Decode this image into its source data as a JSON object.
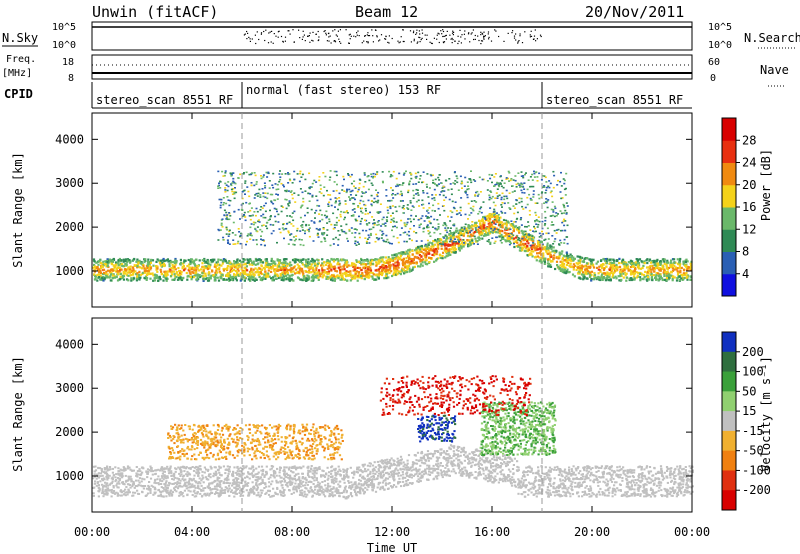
{
  "header": {
    "station": "Unwin (fitACF)",
    "beam": "Beam 12",
    "date": "20/Nov/2011"
  },
  "status_panels": {
    "nsky_label": "N.Sky",
    "nsky_ticks": [
      "10^5",
      "10^0"
    ],
    "nsearch_label": "N.Search",
    "nsearch_ticks": [
      "10^5",
      "10^0"
    ],
    "freq_label": "Freq.",
    "freq_unit": "[MHz]",
    "freq_ticks": [
      "18",
      "8"
    ],
    "nave_label": "Nave",
    "nave_ticks": [
      "60",
      "0"
    ],
    "cpid_label": "CPID",
    "cpid_segments": [
      {
        "start_ut": 0,
        "end_ut": 6,
        "label": "stereo_scan 8551 RF"
      },
      {
        "start_ut": 6,
        "end_ut": 18,
        "label": "normal (fast stereo) 153 RF"
      },
      {
        "start_ut": 18,
        "end_ut": 24,
        "label": "stereo_scan 8551 RF"
      }
    ]
  },
  "chart_data": [
    {
      "type": "heatmap",
      "name": "power",
      "ylabel": "Slant Range [km]",
      "xlabel": "Time UT",
      "x_ticks": [
        "00:00",
        "04:00",
        "08:00",
        "12:00",
        "16:00",
        "20:00",
        "00:00"
      ],
      "xlim_hours": [
        0,
        24
      ],
      "ylim_km": [
        180,
        4600
      ],
      "y_ticks": [
        1000,
        2000,
        3000,
        4000
      ],
      "colorbar": {
        "label": "Power [dB]",
        "ticks": [
          4,
          8,
          12,
          16,
          20,
          24,
          28
        ],
        "colors": [
          "#1010e0",
          "#2a5fb4",
          "#2f8a55",
          "#6ab86a",
          "#f4d21a",
          "#f08a10",
          "#e83010",
          "#d80000"
        ]
      },
      "features": [
        {
          "description_id": "main_band",
          "start_ut": 0,
          "end_ut": 24,
          "range_km_start": 1000,
          "range_km_peak": 2250,
          "peak_ut": 16,
          "power_db": [
            8,
            26
          ]
        },
        {
          "description_id": "upper_scatter",
          "start_ut": 6,
          "end_ut": 18,
          "range_km": [
            1600,
            3300
          ],
          "power_db": [
            4,
            20
          ]
        }
      ]
    },
    {
      "type": "heatmap",
      "name": "velocity",
      "ylabel": "Slant Range [km]",
      "xlabel": "Time UT",
      "x_ticks": [
        "00:00",
        "04:00",
        "08:00",
        "12:00",
        "16:00",
        "20:00",
        "00:00"
      ],
      "xlim_hours": [
        0,
        24
      ],
      "ylim_km": [
        180,
        4600
      ],
      "y_ticks": [
        1000,
        2000,
        3000,
        4000
      ],
      "colorbar": {
        "label": "Velocity [m s⁻¹]",
        "ticks": [
          200,
          100,
          50,
          15,
          -15,
          -50,
          -100,
          -200
        ],
        "colors": [
          "#1030c0",
          "#2f6f3f",
          "#3aa03a",
          "#90d070",
          "#c0c0c0",
          "#f0b030",
          "#f08010",
          "#e03010",
          "#d80000"
        ]
      },
      "features": [
        {
          "description_id": "ground_scatter",
          "start_ut": 0,
          "end_ut": 24,
          "range_km": [
            500,
            1300
          ],
          "velocity": [
            -15,
            15
          ]
        },
        {
          "description_id": "evening_positive",
          "start_ut": 15.5,
          "end_ut": 18.5,
          "range_km": [
            1500,
            2700
          ],
          "velocity": [
            15,
            100
          ]
        },
        {
          "description_id": "morning_negative",
          "start_ut": 3,
          "end_ut": 10,
          "range_km": [
            1400,
            2200
          ],
          "velocity": [
            -50,
            -15
          ]
        },
        {
          "description_id": "high_red",
          "start_ut": 11.5,
          "end_ut": 17.5,
          "range_km": [
            2400,
            3300
          ],
          "velocity": [
            -200,
            -100
          ]
        },
        {
          "description_id": "blue_patch",
          "start_ut": 13,
          "end_ut": 14.5,
          "range_km": [
            1800,
            2400
          ],
          "velocity": [
            100,
            200
          ]
        }
      ]
    }
  ]
}
